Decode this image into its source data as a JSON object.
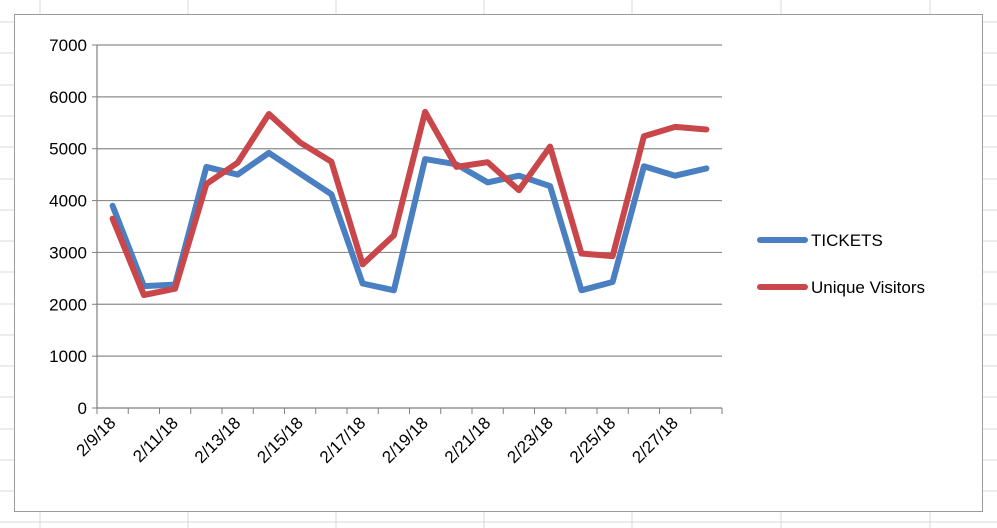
{
  "chart_data": {
    "type": "line",
    "title": "",
    "xlabel": "",
    "ylabel": "",
    "x": [
      "2/9/18",
      "2/10/18",
      "2/11/18",
      "2/12/18",
      "2/13/18",
      "2/14/18",
      "2/15/18",
      "2/16/18",
      "2/17/18",
      "2/18/18",
      "2/19/18",
      "2/20/18",
      "2/21/18",
      "2/22/18",
      "2/23/18",
      "2/24/18",
      "2/25/18",
      "2/26/18",
      "2/27/18",
      "2/28/18"
    ],
    "x_tick_labels": [
      "2/9/18",
      "2/11/18",
      "2/13/18",
      "2/15/18",
      "2/17/18",
      "2/19/18",
      "2/21/18",
      "2/23/18",
      "2/25/18",
      "2/27/18"
    ],
    "ylim": [
      0,
      7000
    ],
    "y_ticks": [
      0,
      1000,
      2000,
      3000,
      4000,
      5000,
      6000,
      7000
    ],
    "y_tick_labels": [
      "0",
      "1000",
      "2000",
      "3000",
      "4000",
      "5000",
      "6000",
      "7000"
    ],
    "grid": "horizontal",
    "legend": "right",
    "series": [
      {
        "name": "TICKETS",
        "color": "#4a7fc1",
        "values": [
          3900,
          2350,
          2380,
          4650,
          4500,
          4920,
          4520,
          4120,
          2400,
          2270,
          4800,
          4700,
          4350,
          4480,
          4280,
          2270,
          2430,
          4660,
          4480,
          4620
        ]
      },
      {
        "name": "Unique Visitors",
        "color": "#c9474a",
        "values": [
          3650,
          2180,
          2300,
          4320,
          4730,
          5670,
          5120,
          4750,
          2770,
          3330,
          5710,
          4650,
          4740,
          4200,
          5040,
          2980,
          2930,
          5240,
          5420,
          5370
        ]
      }
    ]
  }
}
